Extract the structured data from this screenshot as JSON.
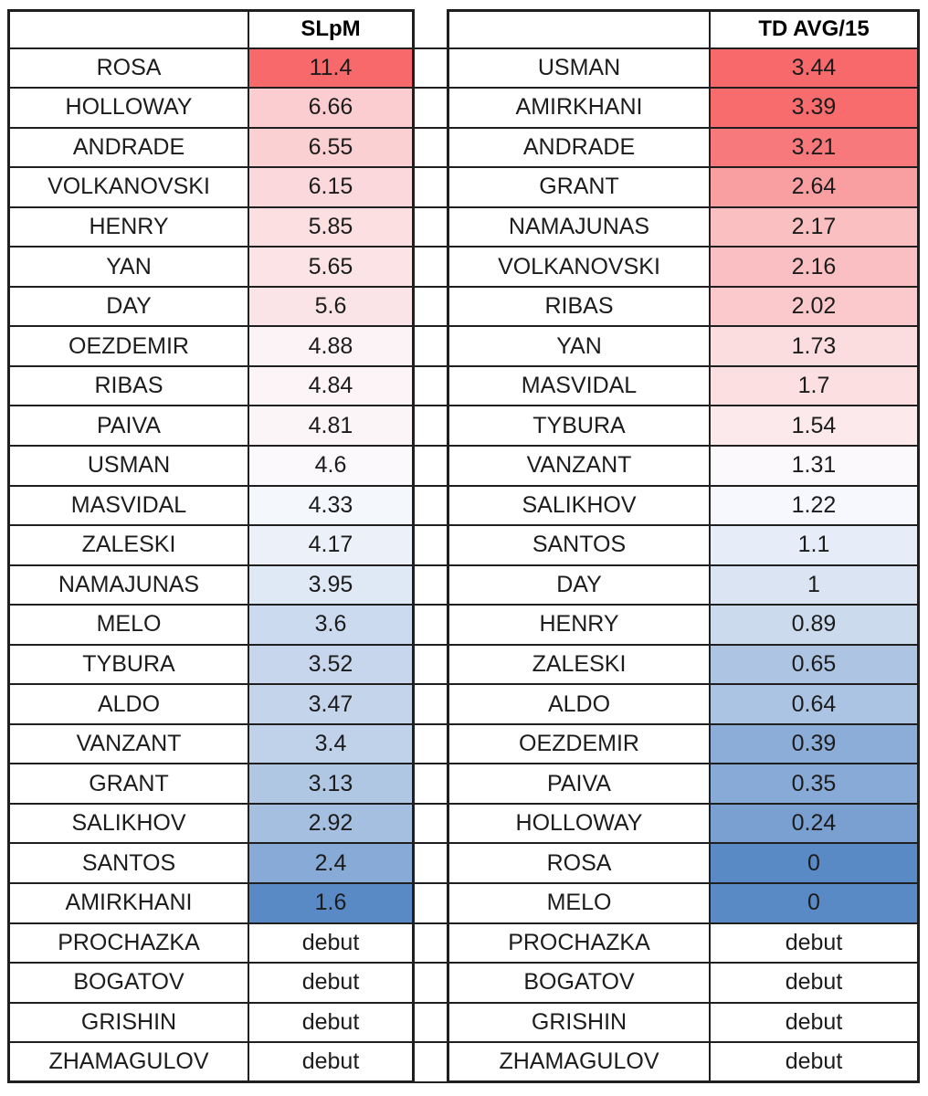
{
  "page": {
    "background": "#ffffff",
    "border_color": "#1f1f1f",
    "text_color": "#1c1c1c",
    "debut_label": "debut"
  },
  "chart_data": [
    {
      "type": "heatmap",
      "title": "SLpM",
      "value_range": [
        1.6,
        11.4
      ],
      "color_scale": {
        "low": "#5A8AC6",
        "mid": "#FCFCFF",
        "high": "#F8696B"
      },
      "rows": [
        {
          "name": "ROSA",
          "value": "11.4",
          "color": "#F8696B"
        },
        {
          "name": "HOLLOWAY",
          "value": "6.66",
          "color": "#FBCDD0"
        },
        {
          "name": "ANDRADE",
          "value": "6.55",
          "color": "#FBD0D3"
        },
        {
          "name": "VOLKANOVSKI",
          "value": "6.15",
          "color": "#FBD8DB"
        },
        {
          "name": "HENRY",
          "value": "5.85",
          "color": "#FBDFE1"
        },
        {
          "name": "YAN",
          "value": "5.65",
          "color": "#FBE3E6"
        },
        {
          "name": "DAY",
          "value": "5.6",
          "color": "#FBE4E7"
        },
        {
          "name": "OEZDEMIR",
          "value": "4.88",
          "color": "#FCF3F6"
        },
        {
          "name": "RIBAS",
          "value": "4.84",
          "color": "#FCF4F7"
        },
        {
          "name": "PAIVA",
          "value": "4.81",
          "color": "#FCF5F8"
        },
        {
          "name": "USMAN",
          "value": "4.6",
          "color": "#FCF9FC"
        },
        {
          "name": "MASVIDAL",
          "value": "4.33",
          "color": "#F4F7FC"
        },
        {
          "name": "ZALESKI",
          "value": "4.17",
          "color": "#EBF0F9"
        },
        {
          "name": "NAMAJUNAS",
          "value": "3.95",
          "color": "#DFE8F5"
        },
        {
          "name": "MELO",
          "value": "3.6",
          "color": "#CBDAEE"
        },
        {
          "name": "TYBURA",
          "value": "3.52",
          "color": "#C7D6EC"
        },
        {
          "name": "ALDO",
          "value": "3.47",
          "color": "#C4D4EB"
        },
        {
          "name": "VANZANT",
          "value": "3.4",
          "color": "#C0D2EA"
        },
        {
          "name": "GRANT",
          "value": "3.13",
          "color": "#B0C7E4"
        },
        {
          "name": "SALIKHOV",
          "value": "2.92",
          "color": "#A5BFE0"
        },
        {
          "name": "SANTOS",
          "value": "2.4",
          "color": "#87AAD6"
        },
        {
          "name": "AMIRKHANI",
          "value": "1.6",
          "color": "#5A8AC6"
        },
        {
          "name": "PROCHAZKA",
          "value": "debut",
          "color": "#FFFFFF"
        },
        {
          "name": "BOGATOV",
          "value": "debut",
          "color": "#FFFFFF"
        },
        {
          "name": "GRISHIN",
          "value": "debut",
          "color": "#FFFFFF"
        },
        {
          "name": "ZHAMAGULOV",
          "value": "debut",
          "color": "#FFFFFF"
        }
      ]
    },
    {
      "type": "heatmap",
      "title": "TD AVG/15",
      "value_range": [
        0,
        3.44
      ],
      "color_scale": {
        "low": "#5A8AC6",
        "mid": "#FCFCFF",
        "high": "#F8696B"
      },
      "rows": [
        {
          "name": "USMAN",
          "value": "3.44",
          "color": "#F8696B"
        },
        {
          "name": "AMIRKHANI",
          "value": "3.39",
          "color": "#F86C6E"
        },
        {
          "name": "ANDRADE",
          "value": "3.21",
          "color": "#F8797B"
        },
        {
          "name": "GRANT",
          "value": "2.64",
          "color": "#F99FA2"
        },
        {
          "name": "NAMAJUNAS",
          "value": "2.17",
          "color": "#FABFC1"
        },
        {
          "name": "VOLKANOVSKI",
          "value": "2.16",
          "color": "#FABFC2"
        },
        {
          "name": "RIBAS",
          "value": "2.02",
          "color": "#FBC9CC"
        },
        {
          "name": "YAN",
          "value": "1.73",
          "color": "#FBDCDF"
        },
        {
          "name": "MASVIDAL",
          "value": "1.7",
          "color": "#FBDFE1"
        },
        {
          "name": "TYBURA",
          "value": "1.54",
          "color": "#FCE9EC"
        },
        {
          "name": "VANZANT",
          "value": "1.31",
          "color": "#FCF9FC"
        },
        {
          "name": "SALIKHOV",
          "value": "1.22",
          "color": "#F6F8FD"
        },
        {
          "name": "SANTOS",
          "value": "1.1",
          "color": "#E7EDF8"
        },
        {
          "name": "DAY",
          "value": "1",
          "color": "#DAE4F3"
        },
        {
          "name": "HENRY",
          "value": "0.89",
          "color": "#CCDAEE"
        },
        {
          "name": "ZALESKI",
          "value": "0.65",
          "color": "#ADC5E3"
        },
        {
          "name": "ALDO",
          "value": "0.64",
          "color": "#ACC4E3"
        },
        {
          "name": "OEZDEMIR",
          "value": "0.39",
          "color": "#8CADD8"
        },
        {
          "name": "PAIVA",
          "value": "0.35",
          "color": "#87AAD6"
        },
        {
          "name": "HOLLOWAY",
          "value": "0.24",
          "color": "#79A0D1"
        },
        {
          "name": "ROSA",
          "value": "0",
          "color": "#5A8AC6"
        },
        {
          "name": "MELO",
          "value": "0",
          "color": "#5A8AC6"
        },
        {
          "name": "PROCHAZKA",
          "value": "debut",
          "color": "#FFFFFF"
        },
        {
          "name": "BOGATOV",
          "value": "debut",
          "color": "#FFFFFF"
        },
        {
          "name": "GRISHIN",
          "value": "debut",
          "color": "#FFFFFF"
        },
        {
          "name": "ZHAMAGULOV",
          "value": "debut",
          "color": "#FFFFFF"
        }
      ]
    }
  ]
}
